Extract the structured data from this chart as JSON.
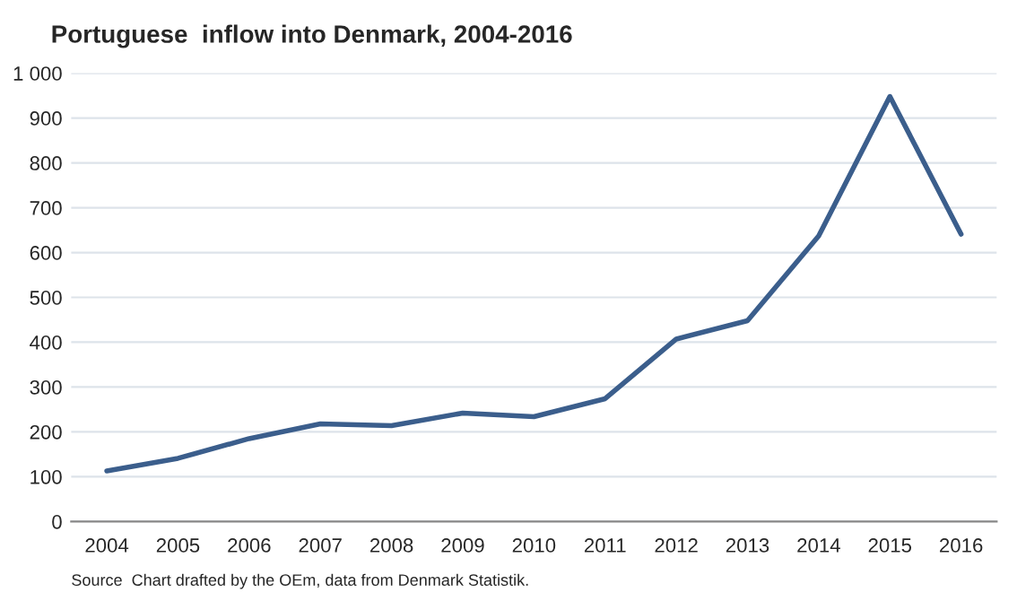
{
  "chart_data": {
    "type": "line",
    "title": "Portuguese  inflow into Denmark, 2004-2016",
    "categories": [
      "2004",
      "2005",
      "2006",
      "2007",
      "2008",
      "2009",
      "2010",
      "2011",
      "2012",
      "2013",
      "2014",
      "2015",
      "2016"
    ],
    "series": [
      {
        "color": "#3b5e8c",
        "values": [
          113,
          141,
          185,
          218,
          214,
          242,
          234,
          274,
          407,
          448,
          637,
          948,
          641
        ]
      }
    ],
    "ylim": [
      0,
      1000
    ],
    "yticks": [
      0,
      100,
      200,
      300,
      400,
      500,
      600,
      700,
      800,
      900,
      {
        "value": 1000,
        "label": "1 000"
      }
    ],
    "grid": "y",
    "marker": "none",
    "line_style": "solid",
    "annotations": [
      "Source  Chart drafted by the OEm, data from Denmark Statistik."
    ]
  }
}
